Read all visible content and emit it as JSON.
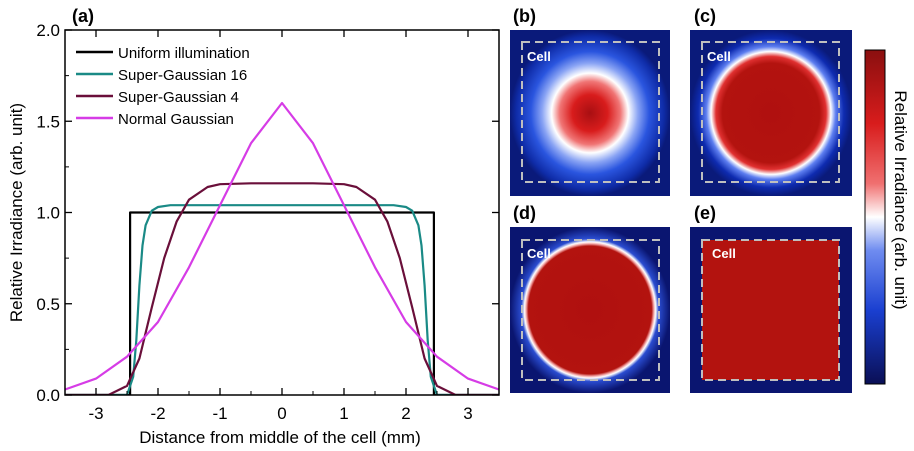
{
  "chart_data": [
    {
      "panel": "(a)",
      "type": "line",
      "xlabel": "Distance from middle of the cell (mm)",
      "ylabel": "Relative Irradiance (arb. unit)",
      "xlim": [
        -3.5,
        3.5
      ],
      "ylim": [
        0,
        2.0
      ],
      "xticks": [
        -3,
        -2,
        -1,
        0,
        1,
        2,
        3
      ],
      "yticks": [
        "0.0",
        "0.5",
        "1.0",
        "1.5",
        "2.0"
      ],
      "legend_position": "top-left",
      "series": [
        {
          "name": "Uniform illumination",
          "color": "#000000",
          "x": [
            -3.5,
            -2.45,
            -2.45,
            2.45,
            2.45,
            3.5
          ],
          "y": [
            0,
            0,
            1.0,
            1.0,
            0,
            0
          ]
        },
        {
          "name": "Super-Gaussian 16",
          "color": "#1a8a86",
          "x": [
            -3.5,
            -2.5,
            -2.4,
            -2.35,
            -2.3,
            -2.25,
            -2.2,
            -2.1,
            -2.0,
            -1.8,
            -1.5,
            -1.0,
            0,
            1.0,
            1.5,
            1.8,
            2.0,
            2.1,
            2.2,
            2.25,
            2.3,
            2.35,
            2.4,
            2.5,
            3.5
          ],
          "y": [
            0,
            0.0,
            0.1,
            0.3,
            0.6,
            0.82,
            0.93,
            1.01,
            1.03,
            1.04,
            1.04,
            1.04,
            1.04,
            1.04,
            1.04,
            1.04,
            1.03,
            1.01,
            0.93,
            0.82,
            0.6,
            0.3,
            0.1,
            0.0,
            0
          ]
        },
        {
          "name": "Super-Gaussian 4",
          "color": "#6a0f3a",
          "x": [
            -3.5,
            -2.8,
            -2.5,
            -2.3,
            -2.1,
            -1.9,
            -1.7,
            -1.5,
            -1.2,
            -1.0,
            -0.5,
            0,
            0.5,
            1.0,
            1.2,
            1.5,
            1.7,
            1.9,
            2.1,
            2.3,
            2.5,
            2.8,
            3.5
          ],
          "y": [
            0,
            0.0,
            0.05,
            0.2,
            0.48,
            0.75,
            0.95,
            1.07,
            1.14,
            1.155,
            1.16,
            1.16,
            1.16,
            1.155,
            1.14,
            1.07,
            0.95,
            0.75,
            0.48,
            0.2,
            0.05,
            0.0,
            0
          ]
        },
        {
          "name": "Normal Gaussian",
          "color": "#d63ce6",
          "x": [
            -3.5,
            -3.0,
            -2.5,
            -2.0,
            -1.5,
            -1.0,
            -0.5,
            0,
            0.5,
            1.0,
            1.5,
            2.0,
            2.5,
            3.0,
            3.5
          ],
          "y": [
            0.03,
            0.09,
            0.21,
            0.4,
            0.7,
            1.04,
            1.38,
            1.6,
            1.38,
            1.04,
            0.7,
            0.4,
            0.21,
            0.09,
            0.03
          ]
        }
      ]
    },
    {
      "panel": "(b)",
      "type": "heatmap",
      "cell_label": "Cell",
      "profile": "Normal Gaussian"
    },
    {
      "panel": "(c)",
      "type": "heatmap",
      "cell_label": "Cell",
      "profile": "Super-Gaussian 4"
    },
    {
      "panel": "(d)",
      "type": "heatmap",
      "cell_label": "Cell",
      "profile": "Super-Gaussian 16"
    },
    {
      "panel": "(e)",
      "type": "heatmap",
      "cell_label": "Cell",
      "profile": "Uniform illumination"
    }
  ],
  "colorbar": {
    "label": "Relative Irradiance (arb. unit)",
    "colors": [
      "#0a0f55",
      "#1a3fd0",
      "#6f8cf0",
      "#ffffff",
      "#f07070",
      "#d81c1c",
      "#8a0f0f"
    ]
  }
}
